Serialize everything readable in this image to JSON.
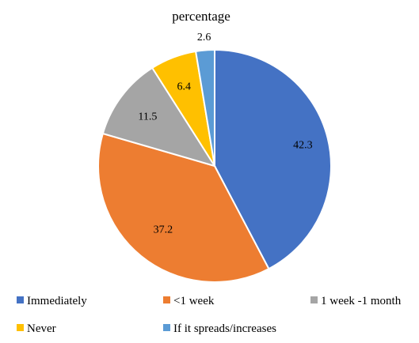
{
  "chart_data": {
    "type": "pie",
    "title": "percentage",
    "categories": [
      "Immediately",
      "<1 week",
      "1 week -1 month",
      "Never",
      "If it spreads/increases"
    ],
    "values": [
      42.3,
      37.2,
      11.5,
      6.4,
      2.6
    ],
    "data_labels": [
      "42.3",
      "37.2",
      "11.5",
      "6.4",
      "2.6"
    ],
    "colors": [
      "#4472C4",
      "#ED7D31",
      "#A5A5A5",
      "#FFC000",
      "#5B9BD5"
    ],
    "start": "12 o'clock, clockwise",
    "legend_position": "bottom"
  }
}
